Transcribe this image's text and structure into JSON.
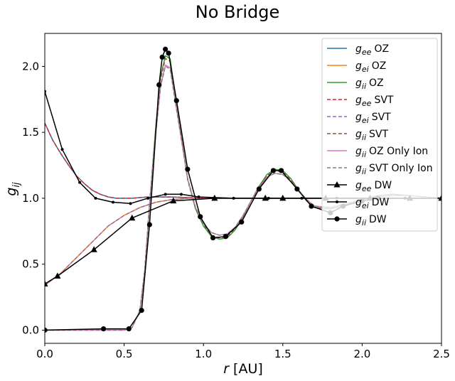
{
  "chart_data": {
    "type": "line",
    "title": "No Bridge",
    "xlabel": {
      "main": "r",
      "unit": "[AU]"
    },
    "ylabel": {
      "main": "g",
      "sub": "ij"
    },
    "xlim": [
      0,
      2.5
    ],
    "ylim": [
      -0.1,
      2.25
    ],
    "xticks": [
      "0.0",
      "0.5",
      "1.0",
      "1.5",
      "2.0",
      "2.5"
    ],
    "yticks": [
      "0.0",
      "0.5",
      "1.0",
      "1.5",
      "2.0"
    ],
    "grid": false,
    "legend_position": "top-right",
    "series": [
      {
        "name": "OZ",
        "base": "g",
        "sub": "ee",
        "color": "#1f77b4",
        "dash": "solid",
        "marker": "none",
        "width": 1.5,
        "x": [
          0.0,
          0.05,
          0.1,
          0.15,
          0.2,
          0.25,
          0.3,
          0.35,
          0.4,
          0.45,
          0.5,
          0.55,
          0.6,
          0.65,
          0.7,
          0.8,
          0.9,
          1.0,
          1.2,
          1.5,
          2.0,
          2.5
        ],
        "y": [
          1.57,
          1.44,
          1.34,
          1.25,
          1.17,
          1.11,
          1.06,
          1.03,
          1.01,
          1.0,
          1.0,
          1.0,
          1.005,
          1.01,
          1.01,
          1.01,
          1.005,
          1.0,
          1.0,
          1.0,
          1.0,
          1.0
        ]
      },
      {
        "name": "OZ",
        "base": "g",
        "sub": "ei",
        "color": "#ff7f0e",
        "dash": "solid",
        "marker": "none",
        "width": 1.5,
        "x": [
          0.0,
          0.1,
          0.2,
          0.3,
          0.4,
          0.5,
          0.6,
          0.7,
          0.8,
          0.9,
          1.0,
          1.2,
          1.5,
          2.0,
          2.5
        ],
        "y": [
          0.34,
          0.43,
          0.55,
          0.67,
          0.79,
          0.87,
          0.93,
          0.97,
          0.99,
          1.0,
          1.0,
          1.0,
          1.0,
          1.0,
          1.0
        ]
      },
      {
        "name": "OZ",
        "base": "g",
        "sub": "ii",
        "color": "#2ca02c",
        "dash": "solid",
        "marker": "none",
        "width": 1.5,
        "x": [
          0.0,
          0.5,
          0.55,
          0.6,
          0.63,
          0.66,
          0.7,
          0.73,
          0.76,
          0.79,
          0.82,
          0.86,
          0.9,
          0.95,
          1.0,
          1.05,
          1.1,
          1.15,
          1.2,
          1.25,
          1.3,
          1.35,
          1.4,
          1.45,
          1.5,
          1.55,
          1.6,
          1.65,
          1.7,
          1.8,
          1.9,
          2.0,
          2.1,
          2.2,
          2.3,
          2.4,
          2.5
        ],
        "y": [
          0.0,
          0.0,
          0.02,
          0.15,
          0.45,
          0.95,
          1.55,
          1.92,
          2.08,
          2.06,
          1.8,
          1.47,
          1.15,
          0.92,
          0.79,
          0.71,
          0.69,
          0.7,
          0.76,
          0.86,
          0.98,
          1.09,
          1.18,
          1.22,
          1.21,
          1.15,
          1.06,
          0.98,
          0.93,
          0.92,
          0.95,
          0.99,
          1.02,
          1.03,
          1.02,
          1.01,
          1.0
        ]
      },
      {
        "name": "SVT",
        "base": "g",
        "sub": "ee",
        "color": "#d62728",
        "dash": "dashed",
        "marker": "none",
        "width": 1.5,
        "x": [
          0.0,
          0.05,
          0.1,
          0.15,
          0.2,
          0.25,
          0.3,
          0.35,
          0.4,
          0.45,
          0.5,
          0.55,
          0.6,
          0.65,
          0.7,
          0.8,
          0.9,
          1.0,
          1.2,
          1.5,
          2.0,
          2.5
        ],
        "y": [
          1.57,
          1.44,
          1.34,
          1.25,
          1.17,
          1.11,
          1.06,
          1.03,
          1.01,
          1.0,
          1.0,
          1.0,
          1.005,
          1.01,
          1.01,
          1.01,
          1.005,
          1.0,
          1.0,
          1.0,
          1.0,
          1.0
        ]
      },
      {
        "name": "SVT",
        "base": "g",
        "sub": "ei",
        "color": "#9467bd",
        "dash": "dashed",
        "marker": "none",
        "width": 1.5,
        "x": [
          0.0,
          0.1,
          0.2,
          0.3,
          0.4,
          0.5,
          0.6,
          0.7,
          0.8,
          0.9,
          1.0,
          1.2,
          1.5,
          2.0,
          2.5
        ],
        "y": [
          0.34,
          0.43,
          0.55,
          0.67,
          0.79,
          0.87,
          0.93,
          0.97,
          0.99,
          1.0,
          1.0,
          1.0,
          1.0,
          1.0,
          1.0
        ]
      },
      {
        "name": "SVT",
        "base": "g",
        "sub": "ii",
        "color": "#8c564b",
        "dash": "dashed",
        "marker": "none",
        "width": 1.5,
        "x": [
          0.0,
          0.5,
          0.55,
          0.6,
          0.63,
          0.66,
          0.7,
          0.73,
          0.76,
          0.79,
          0.82,
          0.86,
          0.9,
          0.95,
          1.0,
          1.05,
          1.1,
          1.15,
          1.2,
          1.25,
          1.3,
          1.35,
          1.4,
          1.45,
          1.5,
          1.55,
          1.6,
          1.65,
          1.7,
          1.8,
          1.9,
          2.0,
          2.1,
          2.2,
          2.3,
          2.4,
          2.5
        ],
        "y": [
          0.0,
          0.0,
          0.02,
          0.15,
          0.45,
          0.95,
          1.53,
          1.9,
          2.06,
          2.04,
          1.78,
          1.46,
          1.14,
          0.92,
          0.8,
          0.72,
          0.7,
          0.71,
          0.77,
          0.86,
          0.98,
          1.09,
          1.17,
          1.21,
          1.2,
          1.14,
          1.06,
          0.98,
          0.93,
          0.92,
          0.95,
          0.99,
          1.02,
          1.03,
          1.02,
          1.01,
          1.0
        ]
      },
      {
        "name": "OZ Only Ion",
        "base": "g",
        "sub": "ii",
        "color": "#e377c2",
        "dash": "solid",
        "marker": "none",
        "width": 1.5,
        "x": [
          0.0,
          0.5,
          0.55,
          0.6,
          0.63,
          0.66,
          0.7,
          0.73,
          0.76,
          0.79,
          0.82,
          0.86,
          0.9,
          0.95,
          1.0,
          1.05,
          1.1,
          1.15,
          1.2,
          1.25,
          1.3,
          1.35,
          1.4,
          1.45,
          1.5,
          1.55,
          1.6,
          1.65,
          1.7,
          1.8,
          1.9,
          2.0,
          2.1,
          2.2,
          2.3,
          2.4,
          2.5
        ],
        "y": [
          0.0,
          0.0,
          0.02,
          0.15,
          0.45,
          0.95,
          1.5,
          1.85,
          2.01,
          1.99,
          1.76,
          1.45,
          1.15,
          0.93,
          0.81,
          0.74,
          0.72,
          0.73,
          0.78,
          0.87,
          0.98,
          1.08,
          1.16,
          1.19,
          1.18,
          1.13,
          1.06,
          0.99,
          0.94,
          0.93,
          0.96,
          0.99,
          1.01,
          1.02,
          1.02,
          1.01,
          1.0
        ]
      },
      {
        "name": "SVT Only Ion",
        "base": "g",
        "sub": "ii",
        "color": "#7f7f7f",
        "dash": "dashed",
        "marker": "none",
        "width": 1.5,
        "x": [
          0.0,
          0.5,
          0.55,
          0.6,
          0.63,
          0.66,
          0.7,
          0.73,
          0.76,
          0.79,
          0.82,
          0.86,
          0.9,
          0.95,
          1.0,
          1.05,
          1.1,
          1.15,
          1.2,
          1.25,
          1.3,
          1.35,
          1.4,
          1.45,
          1.5,
          1.55,
          1.6,
          1.65,
          1.7,
          1.8,
          1.9,
          2.0,
          2.1,
          2.2,
          2.3,
          2.4,
          2.5
        ],
        "y": [
          0.0,
          0.0,
          0.02,
          0.15,
          0.45,
          0.95,
          1.5,
          1.85,
          2.0,
          1.98,
          1.75,
          1.45,
          1.15,
          0.93,
          0.81,
          0.74,
          0.72,
          0.73,
          0.78,
          0.87,
          0.98,
          1.08,
          1.16,
          1.19,
          1.18,
          1.13,
          1.06,
          0.99,
          0.94,
          0.93,
          0.96,
          0.99,
          1.01,
          1.02,
          1.02,
          1.01,
          1.0
        ]
      },
      {
        "name": "DW",
        "base": "g",
        "sub": "ee",
        "color": "#000000",
        "dash": "solid",
        "marker": "triangle",
        "width": 1.5,
        "x": [
          0.0,
          0.08,
          0.31,
          0.55,
          0.81,
          1.07,
          1.39,
          1.5,
          1.77,
          2.05,
          2.3,
          2.5
        ],
        "y": [
          0.35,
          0.41,
          0.61,
          0.85,
          0.98,
          1.0,
          1.0,
          1.0,
          1.0,
          1.0,
          1.0,
          1.0
        ]
      },
      {
        "name": "DW",
        "base": "g",
        "sub": "ei",
        "color": "#000000",
        "dash": "solid",
        "marker": "dot",
        "width": 1.5,
        "x": [
          0.0,
          0.11,
          0.22,
          0.32,
          0.43,
          0.54,
          0.65,
          0.76,
          0.86,
          0.97,
          1.19,
          1.41,
          1.62,
          1.84,
          2.05,
          2.27,
          2.5
        ],
        "y": [
          1.81,
          1.37,
          1.12,
          1.0,
          0.97,
          0.96,
          1.0,
          1.03,
          1.03,
          1.01,
          1.0,
          1.0,
          1.0,
          1.0,
          1.0,
          1.0,
          1.0
        ]
      },
      {
        "name": "DW",
        "base": "g",
        "sub": "ii",
        "color": "#000000",
        "dash": "solid",
        "marker": "circle",
        "width": 1.5,
        "x": [
          0.0,
          0.37,
          0.53,
          0.61,
          0.66,
          0.72,
          0.74,
          0.76,
          0.78,
          0.83,
          0.9,
          0.98,
          1.06,
          1.14,
          1.24,
          1.35,
          1.44,
          1.49,
          1.59,
          1.68,
          1.8,
          1.88,
          2.0,
          2.1
        ],
        "y": [
          0.0,
          0.01,
          0.01,
          0.15,
          0.8,
          1.86,
          2.07,
          2.13,
          2.1,
          1.74,
          1.22,
          0.86,
          0.7,
          0.71,
          0.82,
          1.07,
          1.21,
          1.21,
          1.07,
          0.94,
          0.89,
          0.94,
          0.98,
          1.0
        ]
      }
    ]
  }
}
